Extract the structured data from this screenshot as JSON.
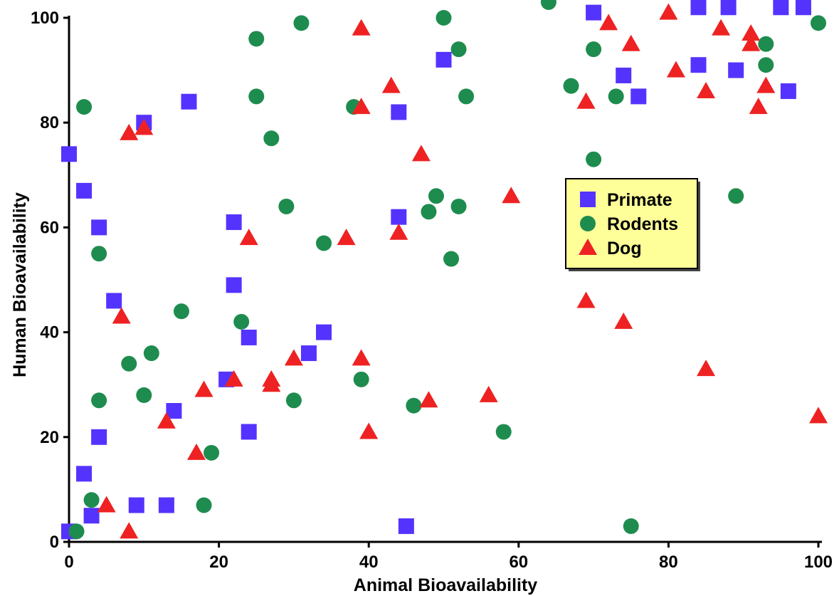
{
  "chart_data": {
    "type": "scatter",
    "xlabel": "Animal Bioavailability",
    "ylabel": "Human Bioavailability",
    "xlim": [
      0,
      100
    ],
    "ylim": [
      0,
      100
    ],
    "x_ticks": [
      "0",
      "20",
      "40",
      "60",
      "80",
      "100"
    ],
    "y_ticks": [
      "0",
      "20",
      "40",
      "60",
      "80",
      "100"
    ],
    "grid": false,
    "legend_position": "center-right",
    "series": [
      {
        "name": "Primate",
        "marker": "square",
        "color": "#5533ff",
        "points": [
          [
            0,
            74
          ],
          [
            2,
            67
          ],
          [
            4,
            60
          ],
          [
            16,
            84
          ],
          [
            10,
            80
          ],
          [
            6,
            46
          ],
          [
            4,
            20
          ],
          [
            2,
            13
          ],
          [
            3,
            5
          ],
          [
            0,
            2
          ],
          [
            9,
            7
          ],
          [
            13,
            7
          ],
          [
            14,
            25
          ],
          [
            21,
            31
          ],
          [
            22,
            61
          ],
          [
            22,
            49
          ],
          [
            24,
            39
          ],
          [
            24,
            21
          ],
          [
            32,
            36
          ],
          [
            34,
            40
          ],
          [
            44,
            82
          ],
          [
            44,
            62
          ],
          [
            45,
            3
          ],
          [
            50,
            92
          ],
          [
            70,
            101
          ],
          [
            74,
            89
          ],
          [
            76,
            85
          ],
          [
            84,
            91
          ],
          [
            89,
            90
          ],
          [
            84,
            102
          ],
          [
            88,
            102
          ],
          [
            95,
            102
          ],
          [
            98,
            102
          ],
          [
            96,
            86
          ]
        ]
      },
      {
        "name": "Rodents",
        "marker": "circle",
        "color": "#1e8c4e",
        "points": [
          [
            2,
            83
          ],
          [
            4,
            55
          ],
          [
            4,
            27
          ],
          [
            3,
            8
          ],
          [
            1,
            2
          ],
          [
            8,
            34
          ],
          [
            10,
            28
          ],
          [
            11,
            36
          ],
          [
            15,
            44
          ],
          [
            18,
            7
          ],
          [
            19,
            17
          ],
          [
            23,
            42
          ],
          [
            25,
            85
          ],
          [
            25,
            96
          ],
          [
            27,
            77
          ],
          [
            29,
            64
          ],
          [
            30,
            27
          ],
          [
            31,
            99
          ],
          [
            34,
            57
          ],
          [
            38,
            83
          ],
          [
            39,
            31
          ],
          [
            46,
            26
          ],
          [
            48,
            63
          ],
          [
            49,
            66
          ],
          [
            50,
            100
          ],
          [
            51,
            54
          ],
          [
            52,
            64
          ],
          [
            52,
            94
          ],
          [
            53,
            85
          ],
          [
            58,
            21
          ],
          [
            64,
            103
          ],
          [
            67,
            87
          ],
          [
            70,
            94
          ],
          [
            70,
            73
          ],
          [
            73,
            85
          ],
          [
            75,
            3
          ],
          [
            89,
            66
          ],
          [
            93,
            95
          ],
          [
            93,
            91
          ],
          [
            100,
            99
          ]
        ]
      },
      {
        "name": "Dog",
        "marker": "triangle",
        "color": "#ee2222",
        "points": [
          [
            8,
            78
          ],
          [
            10,
            79
          ],
          [
            7,
            43
          ],
          [
            5,
            7
          ],
          [
            8,
            2
          ],
          [
            13,
            23
          ],
          [
            17,
            17
          ],
          [
            18,
            29
          ],
          [
            22,
            31
          ],
          [
            24,
            58
          ],
          [
            27,
            31
          ],
          [
            27,
            30
          ],
          [
            30,
            35
          ],
          [
            37,
            58
          ],
          [
            39,
            98
          ],
          [
            39,
            83
          ],
          [
            39,
            35
          ],
          [
            40,
            21
          ],
          [
            43,
            87
          ],
          [
            44,
            59
          ],
          [
            47,
            74
          ],
          [
            48,
            27
          ],
          [
            56,
            28
          ],
          [
            59,
            66
          ],
          [
            69,
            84
          ],
          [
            69,
            46
          ],
          [
            72,
            99
          ],
          [
            74,
            42
          ],
          [
            75,
            95
          ],
          [
            80,
            101
          ],
          [
            81,
            90
          ],
          [
            85,
            86
          ],
          [
            85,
            33
          ],
          [
            87,
            98
          ],
          [
            91,
            97
          ],
          [
            91,
            95
          ],
          [
            92,
            83
          ],
          [
            93,
            87
          ],
          [
            100,
            24
          ]
        ]
      }
    ]
  }
}
